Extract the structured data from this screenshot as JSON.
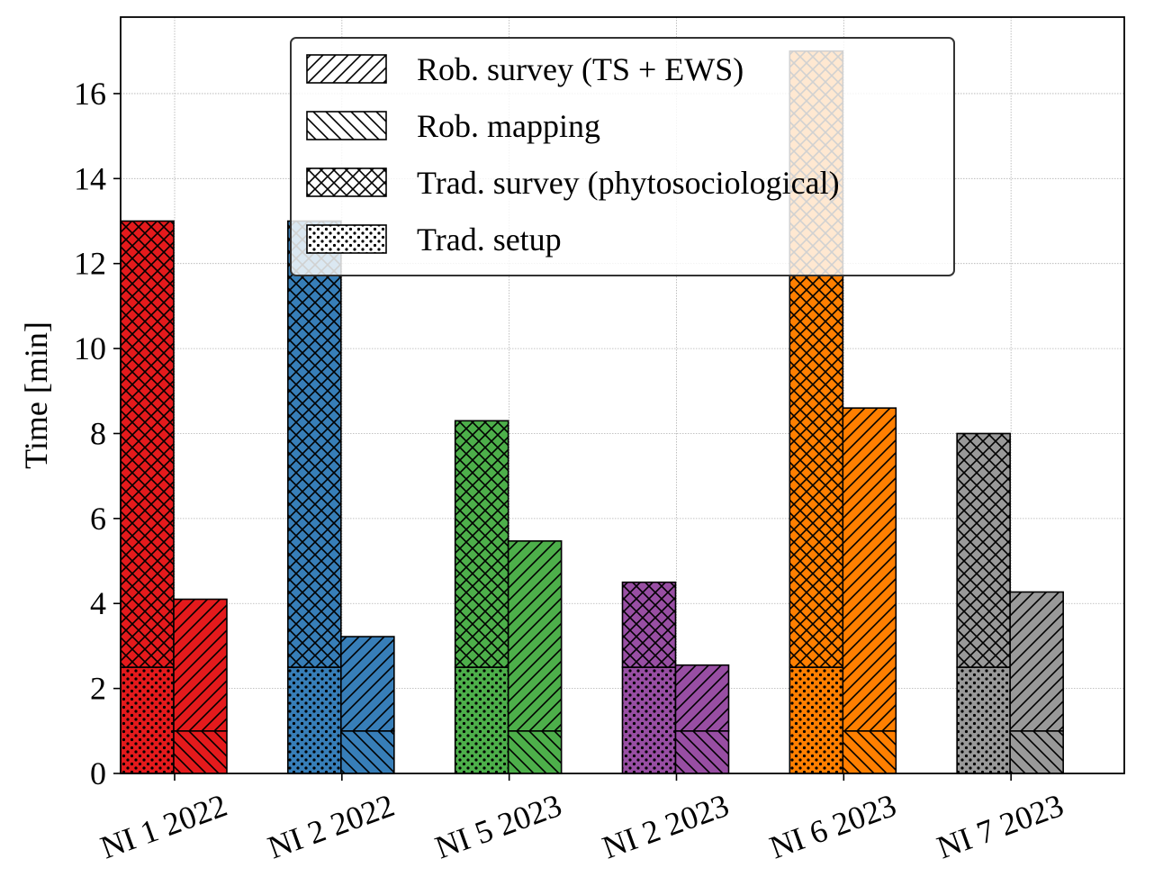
{
  "chart_data": {
    "type": "bar",
    "ylabel": "Time [min]",
    "ylim": [
      0,
      17.8
    ],
    "yticks": [
      0,
      2,
      4,
      6,
      8,
      10,
      12,
      14,
      16
    ],
    "grid": true,
    "legend_position": "top-center",
    "categories": [
      "NI 1 2022",
      "NI 2 2022",
      "NI 5 2023",
      "NI 2 2023",
      "NI 6 2023",
      "NI 7 2023"
    ],
    "colors": [
      "#e41a1c",
      "#377eb8",
      "#4daf4a",
      "#984ea3",
      "#ff7f00",
      "#999999"
    ],
    "series": [
      {
        "name": "Trad. setup",
        "hatch": "dots",
        "stack": "traditional",
        "values": [
          2.5,
          2.5,
          2.5,
          2.5,
          2.5,
          2.5
        ]
      },
      {
        "name": "Trad. survey (phytosociological)",
        "hatch": "crosshatch",
        "stack": "traditional",
        "values": [
          10.5,
          10.5,
          5.8,
          2.0,
          14.5,
          5.5
        ]
      },
      {
        "name": "Rob. mapping",
        "hatch": "backslash",
        "stack": "robotic",
        "values": [
          1.0,
          1.0,
          1.0,
          1.0,
          1.0,
          1.0
        ]
      },
      {
        "name": "Rob. survey (TS + EWS)",
        "hatch": "slash",
        "stack": "robotic",
        "values": [
          3.1,
          2.22,
          4.47,
          1.55,
          7.6,
          3.27
        ]
      }
    ],
    "legend": [
      {
        "label": "Rob. survey (TS + EWS)",
        "hatch": "slash"
      },
      {
        "label": "Rob. mapping",
        "hatch": "backslash"
      },
      {
        "label": "Trad. survey (phytosociological)",
        "hatch": "crosshatch"
      },
      {
        "label": "Trad. setup",
        "hatch": "dots"
      }
    ]
  }
}
